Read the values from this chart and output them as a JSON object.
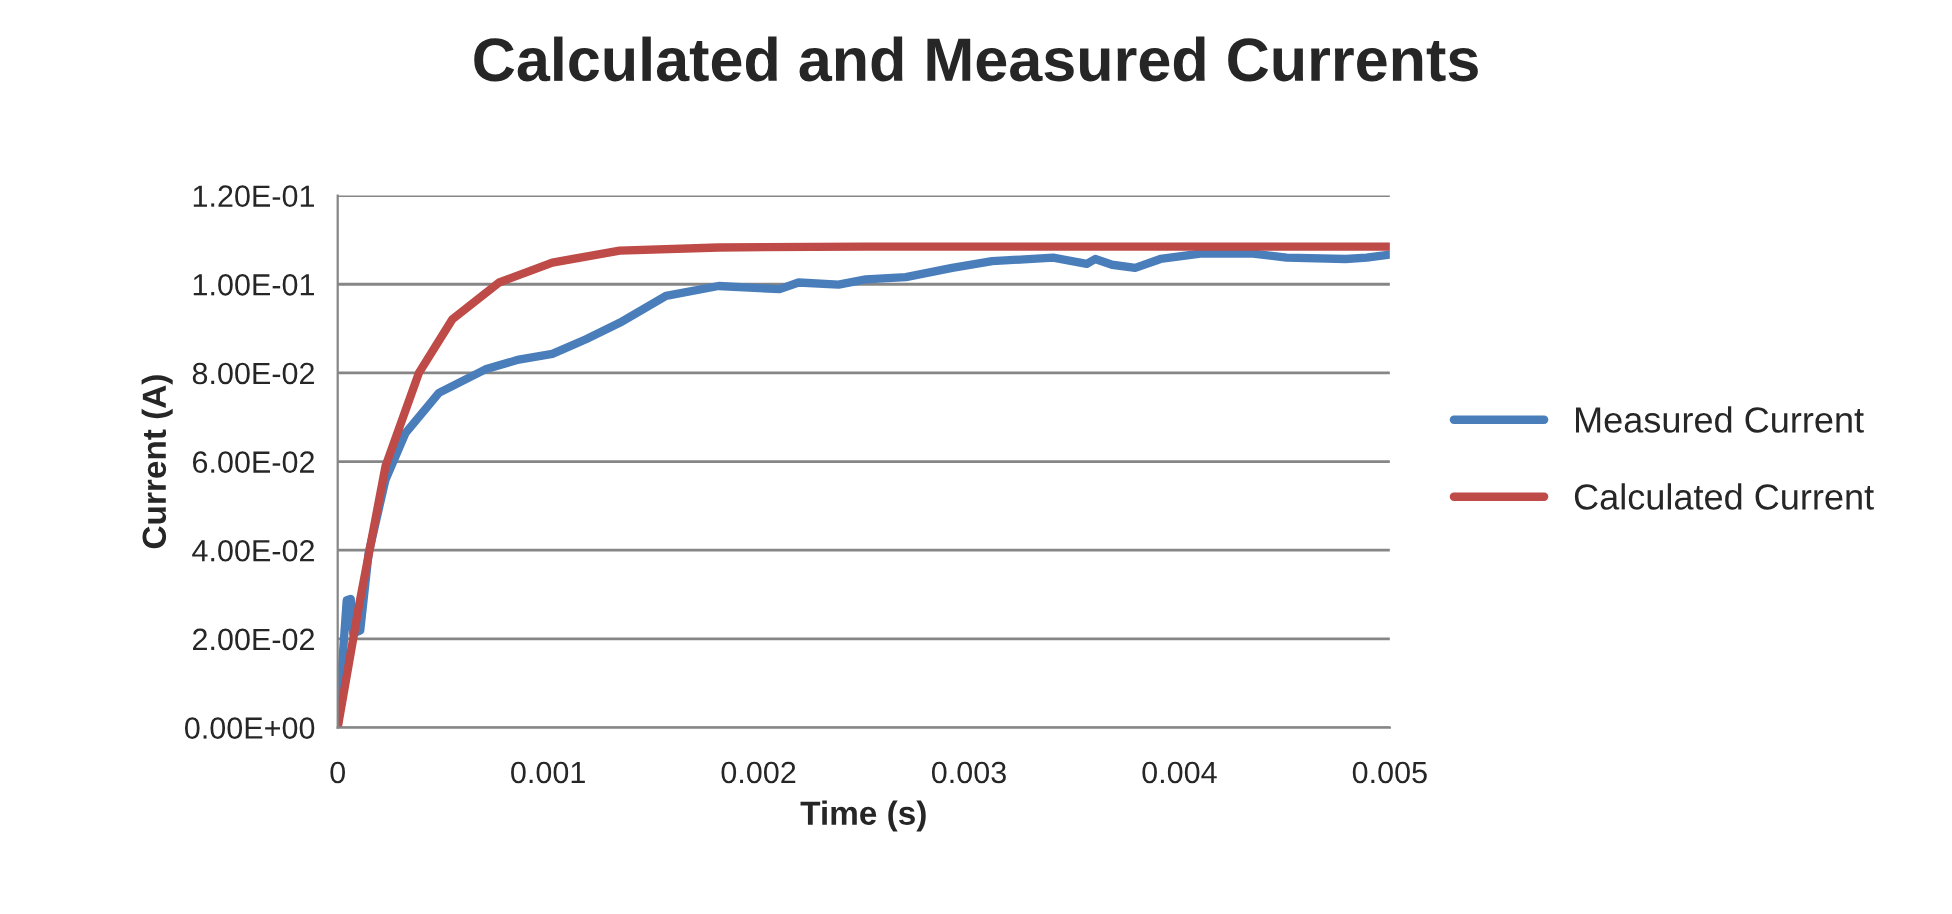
{
  "chart_data": {
    "type": "line",
    "title": "Calculated and Measured Currents",
    "xlabel": "Time (s)",
    "ylabel": "Current (A)",
    "xlim": [
      0,
      0.005
    ],
    "xticks": [
      0,
      0.001,
      0.002,
      0.003,
      0.004,
      0.005
    ],
    "ylim": [
      0,
      0.12
    ],
    "yticks": [
      {
        "value": 0,
        "label": "0.00E+00"
      },
      {
        "value": 0.02,
        "label": "2.00E-02"
      },
      {
        "value": 0.04,
        "label": "4.00E-02"
      },
      {
        "value": 0.06,
        "label": "6.00E-02"
      },
      {
        "value": 0.08,
        "label": "8.00E-02"
      },
      {
        "value": 0.1,
        "label": "1.00E-01"
      },
      {
        "value": 0.12,
        "label": "1.20E-01"
      }
    ],
    "grid": "y",
    "legend": "right",
    "marker": "none",
    "line_style": "solid",
    "series": [
      {
        "name": "Measured Current",
        "color": "#4a7ebb",
        "x": [
          0,
          4.3e-05,
          6.2e-05,
          7.4e-05,
          0.000107,
          0.000147,
          0.000227,
          0.000322,
          0.000481,
          0.000702,
          0.000861,
          0.00102,
          0.00118,
          0.00134,
          0.00156,
          0.00181,
          0.0021,
          0.00219,
          0.00238,
          0.00251,
          0.0027,
          0.00292,
          0.00311,
          0.0034,
          0.00356,
          0.0036,
          0.00368,
          0.00379,
          0.00391,
          0.0041,
          0.00435,
          0.00451,
          0.00479,
          0.00489,
          0.005
        ],
        "values": [
          0,
          0.0287,
          0.029,
          0.0212,
          0.0219,
          0.0393,
          0.0559,
          0.0664,
          0.0755,
          0.0808,
          0.083,
          0.0843,
          0.0876,
          0.0913,
          0.0974,
          0.0996,
          0.0989,
          0.1004,
          0.0999,
          0.1011,
          0.1016,
          0.1037,
          0.1052,
          0.106,
          0.1046,
          0.1057,
          0.1044,
          0.1037,
          0.1057,
          0.1069,
          0.1069,
          0.106,
          0.1057,
          0.106,
          0.1067
        ]
      },
      {
        "name": "Calculated Current",
        "color": "#be4b48",
        "x": [
          0,
          0.0001,
          0.000227,
          0.000386,
          0.000545,
          0.000767,
          0.00102,
          0.00134,
          0.00181,
          0.0025,
          0.005
        ],
        "values": [
          0,
          0.0272,
          0.0589,
          0.08,
          0.0921,
          0.1004,
          0.1049,
          0.1076,
          0.1083,
          0.1085,
          0.1085
        ]
      }
    ]
  }
}
